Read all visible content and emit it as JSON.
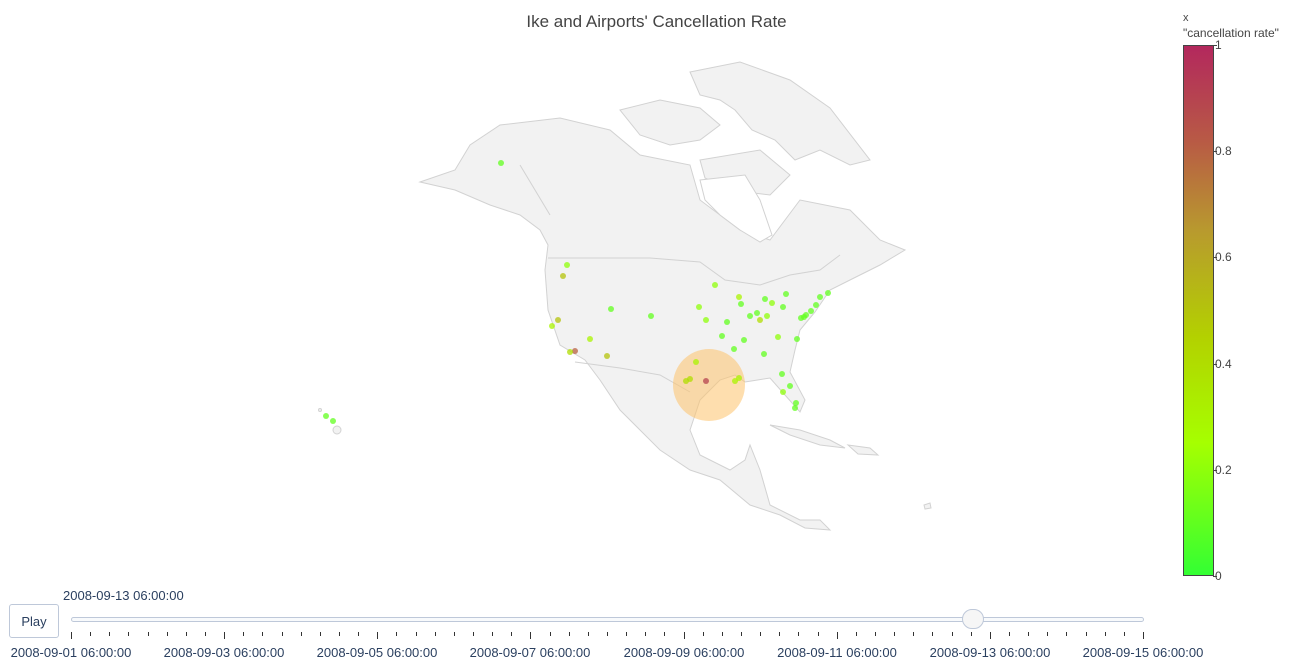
{
  "title": "Ike and Airports' Cancellation Rate",
  "colorbar": {
    "label_line1": "x",
    "label_line2": "\"cancellation rate\"",
    "ticks": [
      "0",
      "0.2",
      "0.4",
      "0.6",
      "0.8",
      "1"
    ],
    "color_low": "#33ff33",
    "color_mid": "#b3d100",
    "color_high": "#b3285d"
  },
  "slider": {
    "play_label": "Play",
    "current_value": "2008-09-13 06:00:00",
    "labels": [
      "2008-09-01 06:00:00",
      "2008-09-03 06:00:00",
      "2008-09-05 06:00:00",
      "2008-09-07 06:00:00",
      "2008-09-09 06:00:00",
      "2008-09-11 06:00:00",
      "2008-09-13 06:00:00",
      "2008-09-15 06:00:00"
    ]
  },
  "map": {
    "land_color": "#f0f0f0",
    "border_color": "#d0d0d0",
    "hurricane_color": "#fdc26b"
  }
}
